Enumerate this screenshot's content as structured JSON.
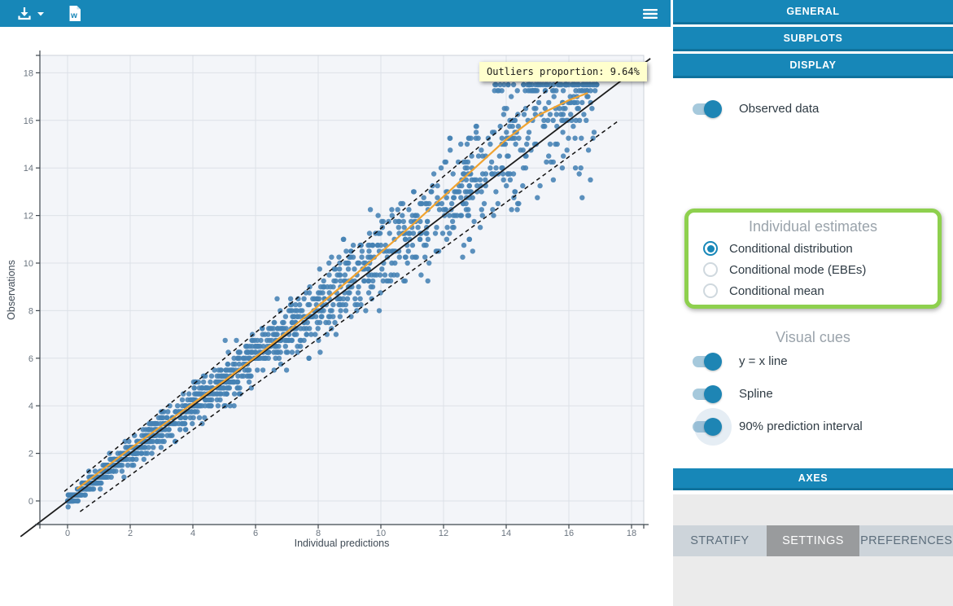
{
  "header": {
    "bg_color": "#1787b8",
    "icons": [
      {
        "name": "download-icon",
        "meaning": "export / save plot"
      },
      {
        "name": "caret-down-icon",
        "meaning": "download options"
      },
      {
        "name": "word-file-icon",
        "meaning": "export to Word document"
      },
      {
        "name": "hamburger-icon",
        "meaning": "menu"
      }
    ]
  },
  "sidebar": {
    "accent_color": "#1787b8",
    "section_buttons": [
      {
        "label": "GENERAL"
      },
      {
        "label": "SUBPLOTS"
      },
      {
        "label": "DISPLAY"
      }
    ],
    "display": {
      "observed_toggle": {
        "label": "Observed data",
        "on": true
      },
      "estimates": {
        "heading": "Individual estimates",
        "highlight_color": "#8ed04e",
        "options": [
          {
            "label": "Conditional distribution",
            "selected": true
          },
          {
            "label": "Conditional mode (EBEs)",
            "selected": false
          },
          {
            "label": "Conditional mean",
            "selected": false
          }
        ]
      },
      "visual_cues": {
        "heading": "Visual cues",
        "toggles": [
          {
            "label": "y = x line",
            "on": true,
            "halo": false
          },
          {
            "label": "Spline",
            "on": true,
            "halo": false
          },
          {
            "label": "90% prediction interval",
            "on": true,
            "halo": true
          }
        ]
      },
      "axes_button": "AXES"
    },
    "tabs": [
      {
        "label": "STRATIFY",
        "active": false
      },
      {
        "label": "SETTINGS",
        "active": true
      },
      {
        "label": "PREFERENCES",
        "active": false
      }
    ]
  },
  "chart_data": {
    "type": "scatter",
    "title": "",
    "xlabel": "Individual predictions",
    "ylabel": "Observations",
    "xlim": [
      -0.9,
      18.4
    ],
    "ylim": [
      -1.0,
      18.7
    ],
    "xticks": [
      0,
      2,
      4,
      6,
      8,
      10,
      12,
      14,
      16,
      18
    ],
    "yticks": [
      0,
      2,
      4,
      6,
      8,
      10,
      12,
      14,
      16,
      18
    ],
    "grid": true,
    "plot_bg": "#f3f5f9",
    "grid_color": "#dde1e8",
    "axis_color": "#3f474e",
    "tick_label_color": "#6b7580",
    "tooltip": "Outliers proportion: 9.64%",
    "identity_line": {
      "label": "y = x",
      "from": [
        -1.5,
        -1.5
      ],
      "to": [
        18.6,
        18.6
      ],
      "color": "#1c1c1c"
    },
    "spline": {
      "label": "Spline",
      "color": "#f0a330",
      "points": [
        [
          0.3,
          0.5
        ],
        [
          1,
          1.2
        ],
        [
          2,
          2.2
        ],
        [
          3,
          3.15
        ],
        [
          4,
          4.1
        ],
        [
          5,
          5.05
        ],
        [
          6,
          6.05
        ],
        [
          7,
          7.1
        ],
        [
          8,
          8.2
        ],
        [
          9,
          9.3
        ],
        [
          10,
          10.45
        ],
        [
          11,
          11.6
        ],
        [
          12,
          12.8
        ],
        [
          13,
          14.0
        ],
        [
          14,
          15.2
        ],
        [
          15,
          16.2
        ],
        [
          16,
          16.85
        ],
        [
          16.6,
          17.15
        ]
      ]
    },
    "prediction_interval": {
      "label": "90% prediction interval",
      "style": "dashed",
      "color": "#111111",
      "upper": [
        [
          -0.1,
          0.4
        ],
        [
          15.75,
          17.75
        ]
      ],
      "lower": [
        [
          0.4,
          -0.45
        ],
        [
          17.55,
          15.95
        ]
      ]
    },
    "scatter": {
      "label": "Observed data vs individual predictions",
      "color": "#4682b4",
      "opacity": 0.88,
      "radius": 3.2,
      "outliers_proportion_pct": 9.64,
      "generator": {
        "seed": 20240613,
        "n": 1500,
        "x_max": 16.9,
        "x_exponent": 1.35,
        "noise_base": 0.1,
        "noise_slope": 0.08,
        "high_bias": 0.003,
        "y_quantum": 0.25,
        "y_min": -0.45,
        "y_max": 17.5,
        "ceiling_cluster": {
          "n": 45,
          "x_min": 13.6,
          "x_max": 16.7,
          "y_values": [
            17.25,
            17.5
          ]
        }
      }
    }
  }
}
